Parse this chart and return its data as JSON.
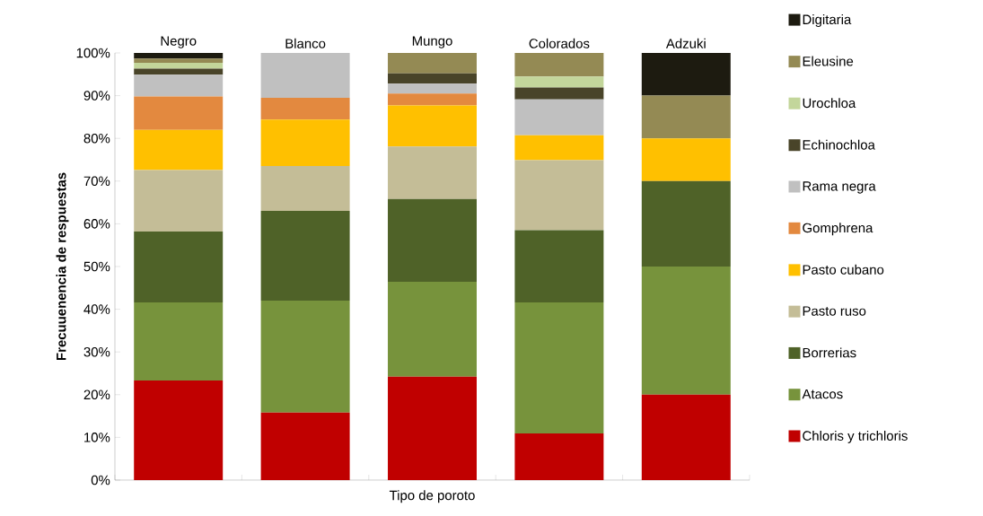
{
  "chart_data": {
    "type": "bar",
    "stacked": true,
    "legend": "right",
    "xlabel": "Tipo de poroto",
    "ylabel": "Frecuuenencia de respuestas",
    "categories": [
      "Negro",
      "Blanco",
      "Mungo",
      "Colorados",
      "Adzuki"
    ],
    "ylim": [
      0,
      100
    ],
    "yticks": [
      {
        "value": 0,
        "label": "0%"
      },
      {
        "value": 10,
        "label": "10%"
      },
      {
        "value": 20,
        "label": "20%"
      },
      {
        "value": 30,
        "label": "30%"
      },
      {
        "value": 40,
        "label": "40%"
      },
      {
        "value": 50,
        "label": "50%"
      },
      {
        "value": 60,
        "label": "60%"
      },
      {
        "value": 70,
        "label": "70%"
      },
      {
        "value": 80,
        "label": "80%"
      },
      {
        "value": 90,
        "label": "90%"
      },
      {
        "value": 100,
        "label": "100%"
      }
    ],
    "series": [
      {
        "name": "Chloris y trichloris",
        "color": "#c00000",
        "values": [
          23.3,
          15.8,
          24.2,
          10.9,
          20
        ]
      },
      {
        "name": "Atacos",
        "color": "#77933c",
        "values": [
          18.3,
          26.2,
          22.2,
          30.7,
          30
        ]
      },
      {
        "name": "Borrerias",
        "color": "#4f6228",
        "values": [
          16.6,
          21.0,
          19.4,
          16.9,
          20
        ]
      },
      {
        "name": "Pasto ruso",
        "color": "#c4bd97",
        "values": [
          14.4,
          10.5,
          12.3,
          16.4,
          0
        ]
      },
      {
        "name": "Pasto cubano",
        "color": "#ffc000",
        "values": [
          9.4,
          10.9,
          9.6,
          5.8,
          10
        ]
      },
      {
        "name": "Gomphrena",
        "color": "#e3893f",
        "values": [
          7.8,
          5.1,
          2.8,
          0,
          0
        ]
      },
      {
        "name": "Rama negra",
        "color": "#c0c0c0",
        "values": [
          5.1,
          10.5,
          2.3,
          8.4,
          0
        ]
      },
      {
        "name": "Echinochloa",
        "color": "#494429",
        "values": [
          1.4,
          0,
          2.4,
          2.8,
          0
        ]
      },
      {
        "name": "Urochloa",
        "color": "#c3d69b",
        "values": [
          1.4,
          0,
          0,
          2.6,
          0
        ]
      },
      {
        "name": "Eleusine",
        "color": "#948a54",
        "values": [
          1.0,
          0,
          4.8,
          5.5,
          10
        ]
      },
      {
        "name": "Digitaria",
        "color": "#1d1b10",
        "values": [
          1.3,
          0,
          0,
          0,
          10
        ]
      }
    ]
  }
}
